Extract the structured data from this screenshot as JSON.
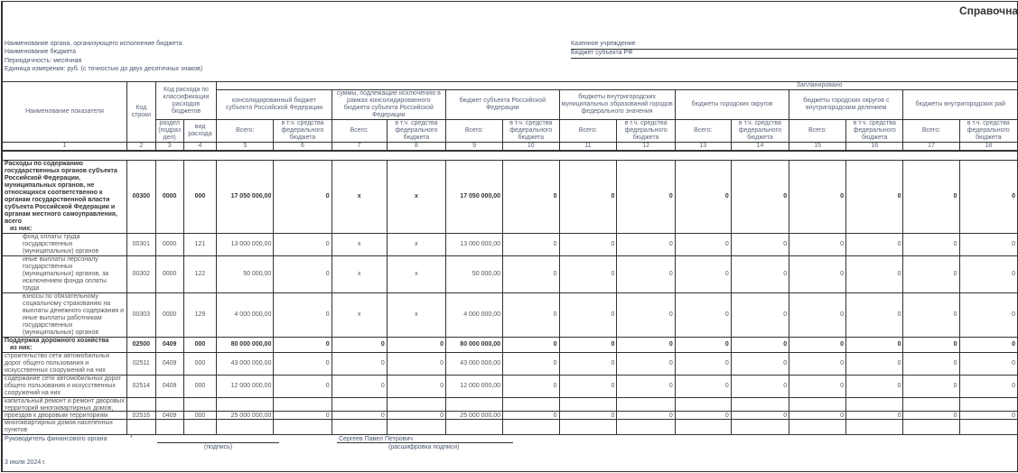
{
  "title": "Справочна",
  "meta": {
    "org_label": "Наименование органа, организующего исполнение бюджета",
    "budget_label": "Наименование бюджета",
    "period_label": "Периодичность: месячная",
    "unit_label": "Единица измерения:  руб. (с точностью до двух десятичных знаков)",
    "org_value": "Казенное учреждение",
    "budget_value": "Бюджет субъекта РФ"
  },
  "header": {
    "name_col": "Наименование показателя",
    "code_col": "Код строки",
    "class_col": "Код расхода по классификации расходов бюджетов",
    "section_col": "раздел (подраз дел)",
    "type_col": "вид расхода",
    "planned": "Запланировано",
    "groups": [
      "консолидированный бюджет субъекта Российской Федерации",
      "суммы, подлежащие исключению в рамках консолидированного бюджета субъекта Российской Федерации",
      "бюджет субъекта Российской Федерации",
      "бюджеты внутригородских муниципальных образований городов федерального значения",
      "бюджеты городских округов",
      "бюджеты городских округов с внутригородским делением",
      "бюджеты внутригородских рай"
    ],
    "total": "Всего:",
    "federal": "в т.ч. средства федерального бюджета",
    "numbers": [
      "1",
      "2",
      "3",
      "4",
      "5",
      "6",
      "7",
      "8",
      "9",
      "10",
      "11",
      "12",
      "13",
      "14",
      "15",
      "16",
      "17",
      "18"
    ]
  },
  "rows": [
    {
      "name": "Расходы по содержанию государственных органов субъекта Российской Федерации, муниципальных органов, не относящихся соответственно к органам государственной власти субъекта Российской Федерации и органам местного самоуправления, всего",
      "sub": "из них:",
      "bold": true,
      "code": "00300",
      "section": "0000",
      "type": "000",
      "values": [
        "17 050 000,00",
        "0",
        "x",
        "x",
        "17 050 000,00",
        "0",
        "0",
        "0",
        "0",
        "0",
        "0",
        "0",
        "0",
        "0"
      ]
    },
    {
      "name": "фонд оплаты труда государственных (муниципальных) органов",
      "indent": true,
      "code": "00301",
      "section": "0000",
      "type": "121",
      "values": [
        "13 000 000,00",
        "0",
        "x",
        "x",
        "13 000 000,00",
        "0",
        "0",
        "0",
        "0",
        "0",
        "0",
        "0",
        "0",
        "0"
      ]
    },
    {
      "name": "иные выплаты персоналу государственных (муниципальных) органов, за исключением фонда оплаты труда",
      "indent": true,
      "code": "00302",
      "section": "0000",
      "type": "122",
      "values": [
        "50 000,00",
        "0",
        "x",
        "x",
        "50 000,00",
        "0",
        "0",
        "0",
        "0",
        "0",
        "0",
        "0",
        "0",
        "0"
      ]
    },
    {
      "name": "взносы по обязательному социальному страхованию на выплаты денежного содержания и иные выплаты работникам  государственных (муниципальных) органов",
      "indent": true,
      "code": "00303",
      "section": "0000",
      "type": "129",
      "values": [
        "4 000 000,00",
        "0",
        "x",
        "x",
        "4 000 000,00",
        "0",
        "0",
        "0",
        "0",
        "0",
        "0",
        "0",
        "0",
        "0"
      ]
    },
    {
      "name": "Поддержка дорожного хозяйства",
      "sub": "из них:",
      "bold": true,
      "code": "02500",
      "section": "0409",
      "type": "000",
      "values": [
        "80 000 000,00",
        "0",
        "0",
        "0",
        "80 000 000,00",
        "0",
        "0",
        "0",
        "0",
        "0",
        "0",
        "0",
        "0",
        "0"
      ]
    },
    {
      "name": "строительство  сети автомобильных дорог общего пользования и искусственных сооружений на них",
      "code": "02511",
      "section": "0409",
      "type": "000",
      "values": [
        "43 000 000,00",
        "0",
        "0",
        "0",
        "43 000 000,00",
        "0",
        "0",
        "0",
        "0",
        "0",
        "0",
        "0",
        "0",
        "0"
      ]
    },
    {
      "name": "содержание  сети автомобильных дорог общего пользования и искусственных сооружений на них",
      "code": "02514",
      "section": "0409",
      "type": "000",
      "values": [
        "12 000 000,00",
        "0",
        "0",
        "0",
        "12 000 000,00",
        "0",
        "0",
        "0",
        "0",
        "0",
        "0",
        "0",
        "0",
        "0"
      ]
    },
    {
      "name": "капитальный ремонт и ремонт дворовых территорий многоквартирных домов, проездов к дворовым территориям многоквартирных домов населенных пунктов",
      "code": "02516",
      "section": "0409",
      "type": "000",
      "values": [
        "25 000 000,00",
        "0",
        "0",
        "0",
        "25 000 000,00",
        "0",
        "0",
        "0",
        "0",
        "0",
        "0",
        "0",
        "0",
        "0"
      ]
    }
  ],
  "footer": {
    "head_label": "Руководитель финансового органа",
    "asterisk": "*",
    "signature_caption": "(подпись)",
    "signer_name": "Сергеев Павел Петрович",
    "name_caption": "(расшифровка подписи)",
    "date": "3 июля 2024 г."
  }
}
